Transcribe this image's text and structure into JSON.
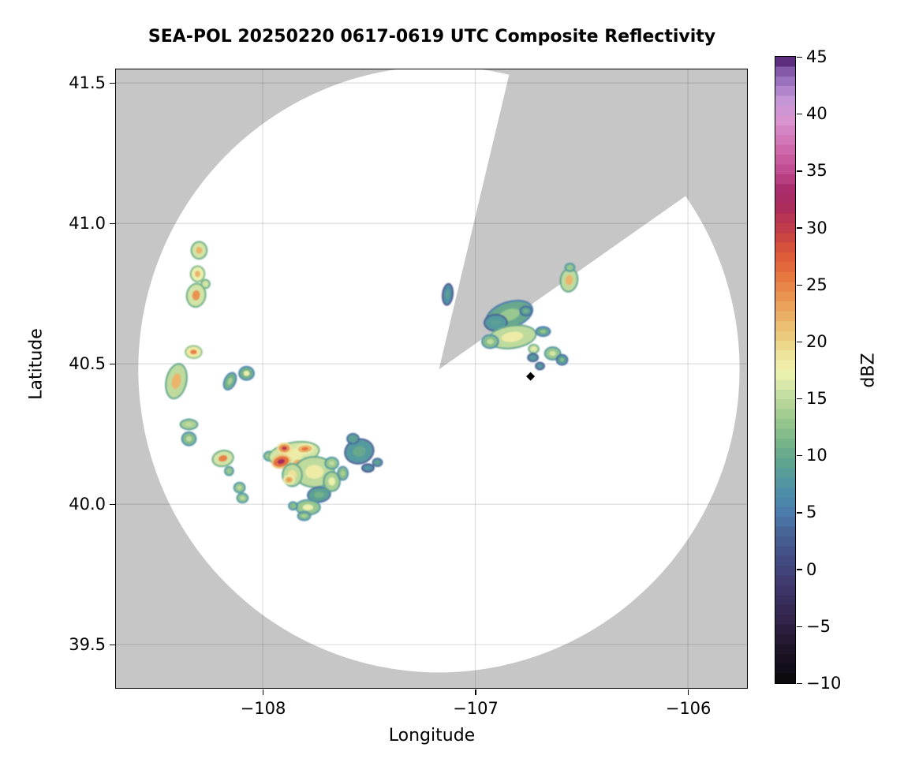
{
  "chart_data": {
    "type": "heatmap",
    "title": "SEA-POL 20250220 0617-0619 UTC Composite Reflectivity",
    "xlabel": "Longitude",
    "ylabel": "Latitude",
    "xlim": [
      -108.69,
      -105.722
    ],
    "ylim": [
      39.346,
      41.548
    ],
    "grid": true,
    "x_ticks": {
      "values": [
        -108,
        -107,
        -106
      ],
      "labels": [
        "−108",
        "−107",
        "−106"
      ]
    },
    "y_ticks": {
      "values": [
        41.5,
        41.0,
        40.5,
        40.0,
        39.5
      ],
      "labels": [
        "41.5",
        "41.0",
        "40.5",
        "40.0",
        "39.5"
      ]
    },
    "colors": {
      "no_data_gray": "#c6c6c6",
      "coverage_white": "#ffffff",
      "gridline": "rgba(0,0,0,0.13)",
      "frame": "#000000",
      "marker_black": "#000000"
    },
    "radar": {
      "center_lon": -107.171,
      "center_lat": 40.48,
      "radius_lon_deg": 1.414,
      "radius_lat_deg": 1.079,
      "blocked_sector_azimuth_deg": [
        13.4,
        54.9
      ]
    },
    "site_marker": {
      "lon": -106.74,
      "lat": 40.455,
      "symbol": "diamond"
    },
    "colorbar": {
      "label": "dBZ",
      "min": -10,
      "max": 45,
      "n_levels": 64,
      "tick_values": [
        45,
        40,
        35,
        30,
        25,
        20,
        15,
        10,
        5,
        0,
        -5,
        -10
      ],
      "tick_labels": [
        "45",
        "40",
        "35",
        "30",
        "25",
        "20",
        "15",
        "10",
        "5",
        "0",
        "−5",
        "−10"
      ],
      "colormap_stops": [
        [
          -10,
          "#080509"
        ],
        [
          -8.5,
          "#150e1c"
        ],
        [
          -7,
          "#1f1529"
        ],
        [
          -5.5,
          "#2a1c3b"
        ],
        [
          -4,
          "#33254e"
        ],
        [
          -2.5,
          "#3a3060"
        ],
        [
          -1,
          "#403c70"
        ],
        [
          0.5,
          "#42497f"
        ],
        [
          2,
          "#44578c"
        ],
        [
          3.5,
          "#476899"
        ],
        [
          5,
          "#4b7cab"
        ],
        [
          6.5,
          "#4e8cab"
        ],
        [
          8,
          "#549a9f"
        ],
        [
          9.5,
          "#60a58f"
        ],
        [
          11,
          "#74b289"
        ],
        [
          12.5,
          "#8fc28c"
        ],
        [
          14,
          "#abd094"
        ],
        [
          15.5,
          "#c8e0a2"
        ],
        [
          17,
          "#eaf0ae"
        ],
        [
          18.5,
          "#f0e9a2"
        ],
        [
          20,
          "#ecd183"
        ],
        [
          21.5,
          "#ecbc70"
        ],
        [
          23,
          "#eaa35c"
        ],
        [
          24.5,
          "#e88b4b"
        ],
        [
          26,
          "#e5713c"
        ],
        [
          27.5,
          "#dd5b38"
        ],
        [
          29,
          "#cc4640"
        ],
        [
          30.5,
          "#bb3650"
        ],
        [
          32,
          "#a82b5e"
        ],
        [
          33.5,
          "#ab2f70"
        ],
        [
          35,
          "#c04b90"
        ],
        [
          36.5,
          "#cc62a5"
        ],
        [
          38,
          "#d37cbc"
        ],
        [
          39.5,
          "#d994cf"
        ],
        [
          41,
          "#c898d8"
        ],
        [
          42.5,
          "#a37cc4"
        ],
        [
          44,
          "#7b4fa0"
        ],
        [
          45,
          "#471364"
        ]
      ]
    },
    "echoes": {
      "fields": [
        "lon",
        "lat",
        "width_px",
        "height_px",
        "rotation_deg",
        "dbz",
        "core_dbz"
      ],
      "points": [
        [
          -108.299,
          40.904,
          17,
          19,
          0,
          16,
          22
        ],
        [
          -108.306,
          40.82,
          15,
          17,
          0,
          17,
          22
        ],
        [
          -108.269,
          40.784,
          8,
          8,
          0,
          16,
          16
        ],
        [
          -108.313,
          40.744,
          21,
          27,
          8,
          16,
          24
        ],
        [
          -108.325,
          40.542,
          18,
          13,
          0,
          18,
          25
        ],
        [
          -108.406,
          40.438,
          23,
          42,
          12,
          15,
          22
        ],
        [
          -108.154,
          40.438,
          11,
          20,
          25,
          11,
          14
        ],
        [
          -108.076,
          40.466,
          16,
          14,
          0,
          11,
          17
        ],
        [
          -108.347,
          40.284,
          19,
          10,
          0,
          14,
          15
        ],
        [
          -108.347,
          40.233,
          15,
          14,
          0,
          12,
          15
        ],
        [
          -108.187,
          40.163,
          24,
          17,
          -12,
          16,
          25
        ],
        [
          -108.158,
          40.118,
          8,
          8,
          0,
          13,
          13
        ],
        [
          -108.109,
          40.059,
          11,
          10,
          0,
          13,
          15
        ],
        [
          -108.095,
          40.022,
          11,
          9,
          0,
          13,
          15
        ],
        [
          -107.968,
          40.171,
          11,
          9,
          0,
          13,
          16
        ],
        [
          -107.853,
          40.18,
          62,
          26,
          -10,
          16,
          18
        ],
        [
          -107.898,
          40.199,
          14,
          10,
          0,
          24,
          30
        ],
        [
          -107.913,
          40.152,
          20,
          13,
          -15,
          26,
          32
        ],
        [
          -107.801,
          40.197,
          18,
          9,
          -5,
          22,
          26
        ],
        [
          -107.827,
          40.146,
          16,
          10,
          0,
          22,
          25
        ],
        [
          -107.757,
          40.115,
          48,
          36,
          0,
          15,
          18
        ],
        [
          -107.735,
          40.034,
          26,
          16,
          -5,
          9,
          11
        ],
        [
          -107.675,
          40.081,
          18,
          22,
          0,
          14,
          17
        ],
        [
          -107.787,
          39.989,
          28,
          16,
          0,
          13,
          17
        ],
        [
          -107.861,
          40.104,
          22,
          26,
          0,
          15,
          19
        ],
        [
          -107.876,
          40.087,
          10,
          8,
          0,
          22,
          24
        ],
        [
          -107.805,
          39.958,
          13,
          8,
          0,
          12,
          14
        ],
        [
          -107.857,
          39.994,
          8,
          7,
          0,
          12,
          12
        ],
        [
          -107.675,
          40.146,
          14,
          12,
          0,
          13,
          15
        ],
        [
          -107.623,
          40.11,
          10,
          14,
          0,
          12,
          14
        ],
        [
          -107.546,
          40.188,
          34,
          28,
          -15,
          8,
          10
        ],
        [
          -107.575,
          40.233,
          12,
          10,
          0,
          9,
          9
        ],
        [
          -107.505,
          40.129,
          12,
          7,
          0,
          7,
          8
        ],
        [
          -107.46,
          40.149,
          9,
          7,
          0,
          9,
          9
        ],
        [
          -107.13,
          40.747,
          10,
          24,
          6,
          7,
          9
        ],
        [
          -106.84,
          40.674,
          58,
          30,
          -18,
          10,
          13
        ],
        [
          -106.904,
          40.646,
          26,
          18,
          0,
          8,
          9
        ],
        [
          -106.826,
          40.596,
          58,
          26,
          -8,
          15,
          18
        ],
        [
          -106.93,
          40.579,
          18,
          14,
          0,
          12,
          15
        ],
        [
          -106.725,
          40.553,
          10,
          8,
          0,
          16,
          18
        ],
        [
          -106.681,
          40.615,
          15,
          9,
          0,
          10,
          13
        ],
        [
          -106.636,
          40.537,
          17,
          13,
          0,
          13,
          16
        ],
        [
          -106.592,
          40.514,
          11,
          10,
          0,
          9,
          12
        ],
        [
          -106.729,
          40.522,
          10,
          7,
          0,
          8,
          8
        ],
        [
          -106.696,
          40.492,
          8,
          6,
          0,
          8,
          8
        ],
        [
          -106.762,
          40.688,
          12,
          9,
          0,
          9,
          11
        ],
        [
          -106.559,
          40.798,
          19,
          27,
          8,
          15,
          22
        ],
        [
          -106.555,
          40.843,
          9,
          7,
          0,
          13,
          13
        ]
      ]
    }
  }
}
